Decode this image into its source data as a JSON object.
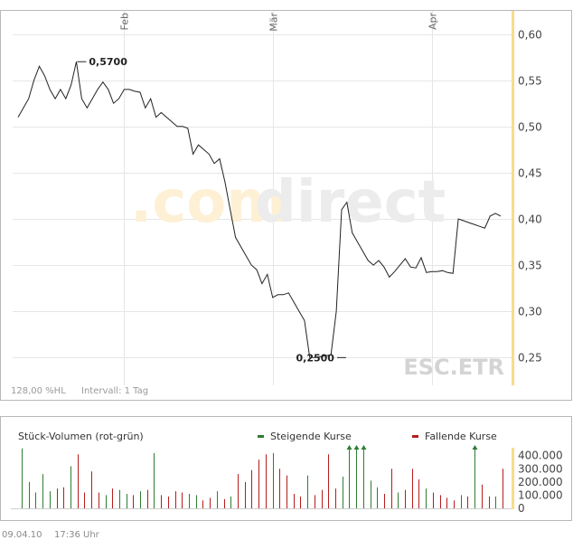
{
  "watermark": {
    "part1": ".com",
    "part2": "direct"
  },
  "symbol": "ESC.ETR",
  "bottom_left_info": {
    "range": "128,00 %HL",
    "interval": "Intervall: 1 Tag"
  },
  "footer": {
    "date": "09.04.10",
    "time": "17:36 Uhr"
  },
  "chart_data": [
    {
      "type": "line",
      "x_tick_labels": [
        "Feb",
        "Mär",
        "Apr"
      ],
      "ylim": [
        0.22,
        0.625
      ],
      "y_ticks": [
        0.25,
        0.3,
        0.35,
        0.4,
        0.45,
        0.5,
        0.55,
        0.6
      ],
      "y_tick_labels": [
        "0,25",
        "0,30",
        "0,35",
        "0,40",
        "0,45",
        "0,50",
        "0,55",
        "0,60"
      ],
      "grid": true,
      "annotations": [
        {
          "label": "0,5700",
          "kind": "max",
          "index": 12,
          "value": 0.57
        },
        {
          "label": "0,2500",
          "kind": "min",
          "index": 61,
          "value": 0.25
        }
      ],
      "series": [
        {
          "values": [
            0.51,
            0.52,
            0.53,
            0.55,
            0.565,
            0.555,
            0.54,
            0.53,
            0.54,
            0.53,
            0.545,
            0.57,
            0.53,
            0.52,
            0.53,
            0.54,
            0.548,
            0.54,
            0.525,
            0.53,
            0.54,
            0.54,
            0.538,
            0.537,
            0.52,
            0.53,
            0.51,
            0.515,
            0.51,
            0.505,
            0.5,
            0.5,
            0.498,
            0.47,
            0.48,
            0.475,
            0.47,
            0.46,
            0.465,
            0.44,
            0.41,
            0.38,
            0.37,
            0.36,
            0.35,
            0.345,
            0.33,
            0.34,
            0.315,
            0.318,
            0.318,
            0.32,
            0.31,
            0.3,
            0.29,
            0.25,
            0.25,
            0.251,
            0.252,
            0.253,
            0.3,
            0.41,
            0.418,
            0.385,
            0.375,
            0.365,
            0.355,
            0.35,
            0.355,
            0.348,
            0.337,
            0.343,
            0.35,
            0.357,
            0.348,
            0.347,
            0.358,
            0.342,
            0.343,
            0.343,
            0.344,
            0.342,
            0.341,
            0.4,
            0.398,
            0.396,
            0.394,
            0.392,
            0.39,
            0.403,
            0.406,
            0.403
          ]
        }
      ]
    },
    {
      "type": "bar",
      "title": "Stück-Volumen (rot-grün)",
      "legend": [
        {
          "name": "Steigende Kurse",
          "color": "#2e7d32"
        },
        {
          "name": "Fallende Kurse",
          "color": "#b71c1c"
        }
      ],
      "ylim": [
        0,
        460000
      ],
      "y_ticks": [
        0,
        100000,
        200000,
        300000,
        400000
      ],
      "y_tick_labels": [
        "0",
        "100.000",
        "200.000",
        "300.000",
        "400.000"
      ],
      "bars": [
        {
          "v": 455000,
          "d": "u"
        },
        {
          "v": 200000,
          "d": "u"
        },
        {
          "v": 120000,
          "d": "u"
        },
        {
          "v": 260000,
          "d": "u"
        },
        {
          "v": 130000,
          "d": "u"
        },
        {
          "v": 150000,
          "d": "d"
        },
        {
          "v": 160000,
          "d": "d"
        },
        {
          "v": 320000,
          "d": "u"
        },
        {
          "v": 410000,
          "d": "d"
        },
        {
          "v": 120000,
          "d": "d"
        },
        {
          "v": 280000,
          "d": "d"
        },
        {
          "v": 120000,
          "d": "d"
        },
        {
          "v": 100000,
          "d": "u"
        },
        {
          "v": 150000,
          "d": "d"
        },
        {
          "v": 140000,
          "d": "u"
        },
        {
          "v": 110000,
          "d": "u"
        },
        {
          "v": 100000,
          "d": "d"
        },
        {
          "v": 130000,
          "d": "u"
        },
        {
          "v": 140000,
          "d": "d"
        },
        {
          "v": 420000,
          "d": "u"
        },
        {
          "v": 100000,
          "d": "d"
        },
        {
          "v": 90000,
          "d": "d"
        },
        {
          "v": 130000,
          "d": "d"
        },
        {
          "v": 120000,
          "d": "d"
        },
        {
          "v": 110000,
          "d": "u"
        },
        {
          "v": 100000,
          "d": "u"
        },
        {
          "v": 60000,
          "d": "d"
        },
        {
          "v": 80000,
          "d": "d"
        },
        {
          "v": 130000,
          "d": "u"
        },
        {
          "v": 70000,
          "d": "d"
        },
        {
          "v": 90000,
          "d": "u"
        },
        {
          "v": 260000,
          "d": "d"
        },
        {
          "v": 200000,
          "d": "d"
        },
        {
          "v": 290000,
          "d": "d"
        },
        {
          "v": 370000,
          "d": "d"
        },
        {
          "v": 410000,
          "d": "d"
        },
        {
          "v": 420000,
          "d": "u"
        },
        {
          "v": 300000,
          "d": "d"
        },
        {
          "v": 250000,
          "d": "d"
        },
        {
          "v": 110000,
          "d": "d"
        },
        {
          "v": 90000,
          "d": "d"
        },
        {
          "v": 250000,
          "d": "u"
        },
        {
          "v": 100000,
          "d": "d"
        },
        {
          "v": 140000,
          "d": "d"
        },
        {
          "v": 410000,
          "d": "d"
        },
        {
          "v": 150000,
          "d": "d"
        },
        {
          "v": 240000,
          "d": "u"
        },
        {
          "v": 460000,
          "d": "u"
        },
        {
          "v": 460000,
          "d": "u"
        },
        {
          "v": 460000,
          "d": "u"
        },
        {
          "v": 210000,
          "d": "u"
        },
        {
          "v": 160000,
          "d": "u"
        },
        {
          "v": 110000,
          "d": "d"
        },
        {
          "v": 300000,
          "d": "d"
        },
        {
          "v": 120000,
          "d": "u"
        },
        {
          "v": 140000,
          "d": "d"
        },
        {
          "v": 300000,
          "d": "d"
        },
        {
          "v": 220000,
          "d": "d"
        },
        {
          "v": 150000,
          "d": "u"
        },
        {
          "v": 120000,
          "d": "d"
        },
        {
          "v": 100000,
          "d": "d"
        },
        {
          "v": 80000,
          "d": "d"
        },
        {
          "v": 60000,
          "d": "d"
        },
        {
          "v": 100000,
          "d": "u"
        },
        {
          "v": 90000,
          "d": "d"
        },
        {
          "v": 460000,
          "d": "u"
        },
        {
          "v": 180000,
          "d": "d"
        },
        {
          "v": 90000,
          "d": "d"
        },
        {
          "v": 90000,
          "d": "u"
        },
        {
          "v": 300000,
          "d": "d"
        }
      ]
    }
  ],
  "colors": {
    "axis_band": "#f9dc8a",
    "grid": "#e6e6e6",
    "price_line": "#222222",
    "up": "#2e7d32",
    "down": "#b71c1c",
    "watermark_orange": "#fdf0d5",
    "watermark_grey": "#ececec",
    "symbol_grey": "#d4d4d4"
  }
}
